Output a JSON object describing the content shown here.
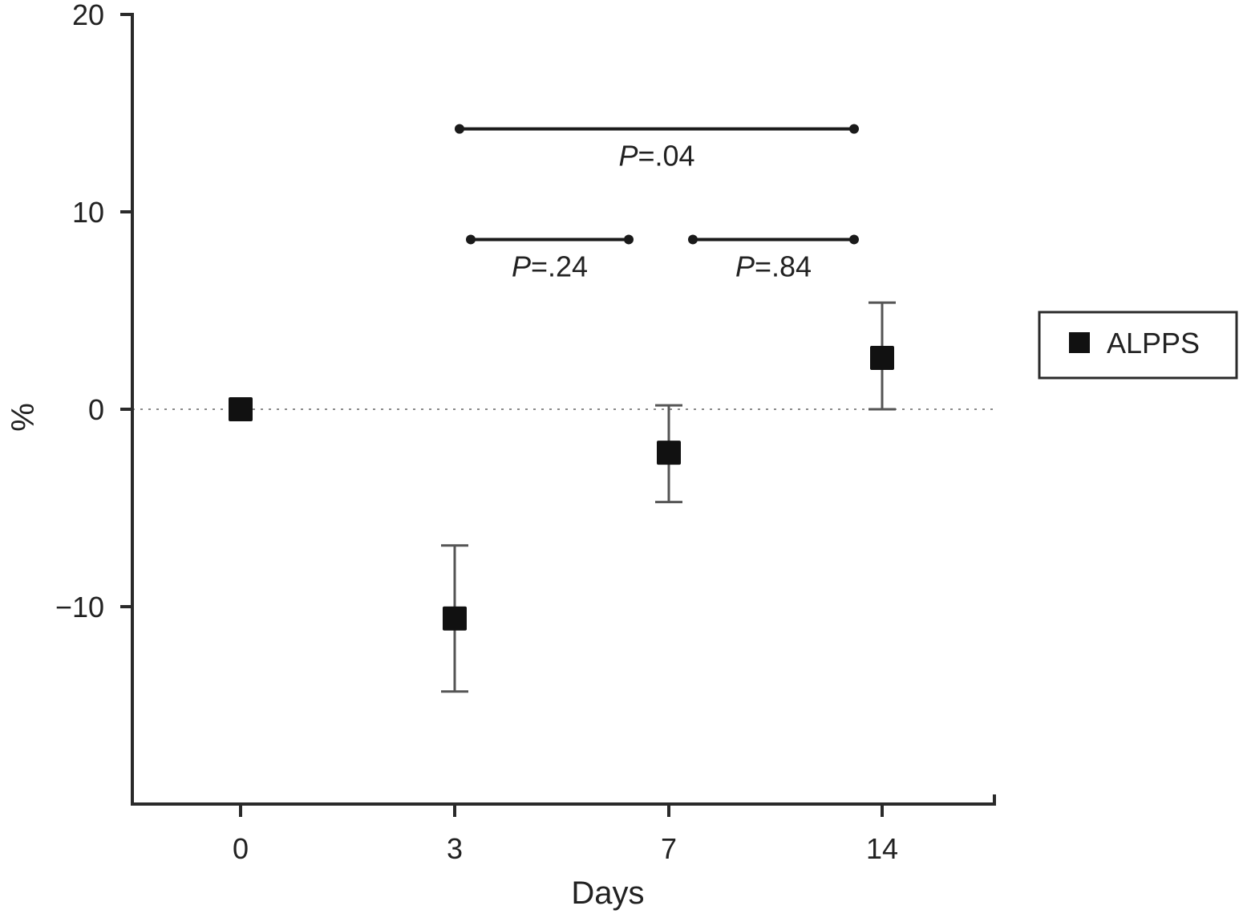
{
  "chart_data": {
    "type": "scatter",
    "xlabel": "Days",
    "ylabel": "%",
    "categories": [
      "0",
      "3",
      "7",
      "14"
    ],
    "yticks": [
      -10,
      0,
      10,
      20
    ],
    "ylim": [
      -20,
      20
    ],
    "zero_reference_line": true,
    "grid": false,
    "legend_position": "right",
    "series": [
      {
        "name": "ALPPS",
        "marker": "square",
        "color": "#111111",
        "points": [
          {
            "x": "0",
            "y": 0,
            "err_low": 0,
            "err_high": 0
          },
          {
            "x": "3",
            "y": -10.6,
            "err_low": -14.3,
            "err_high": -6.9
          },
          {
            "x": "7",
            "y": -2.2,
            "err_low": -4.7,
            "err_high": 0.2
          },
          {
            "x": "14",
            "y": 2.6,
            "err_low": 0,
            "err_high": 5.4
          }
        ]
      }
    ],
    "annotations": [
      {
        "label_prefix": "P",
        "label_value": "=.04",
        "from": "3",
        "to": "14",
        "y": 14.2
      },
      {
        "label_prefix": "P",
        "label_value": "=.24",
        "from": "3",
        "to": "7",
        "y": 8.6
      },
      {
        "label_prefix": "P",
        "label_value": "=.84",
        "from": "7",
        "to": "14",
        "y": 8.6
      }
    ]
  }
}
